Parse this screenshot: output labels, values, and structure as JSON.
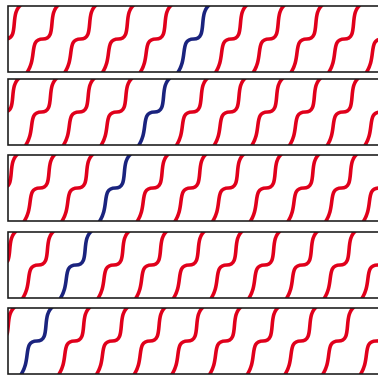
{
  "colors": {
    "background": "#ffffff",
    "border": "#1a1a1a",
    "wave_default": "#e0001b",
    "wave_highlight": "#1a237e"
  },
  "grid": {
    "rows": 5,
    "waves_per_row": 9,
    "highlight_wave_index_by_row": [
      5,
      4,
      3,
      2,
      1
    ]
  }
}
